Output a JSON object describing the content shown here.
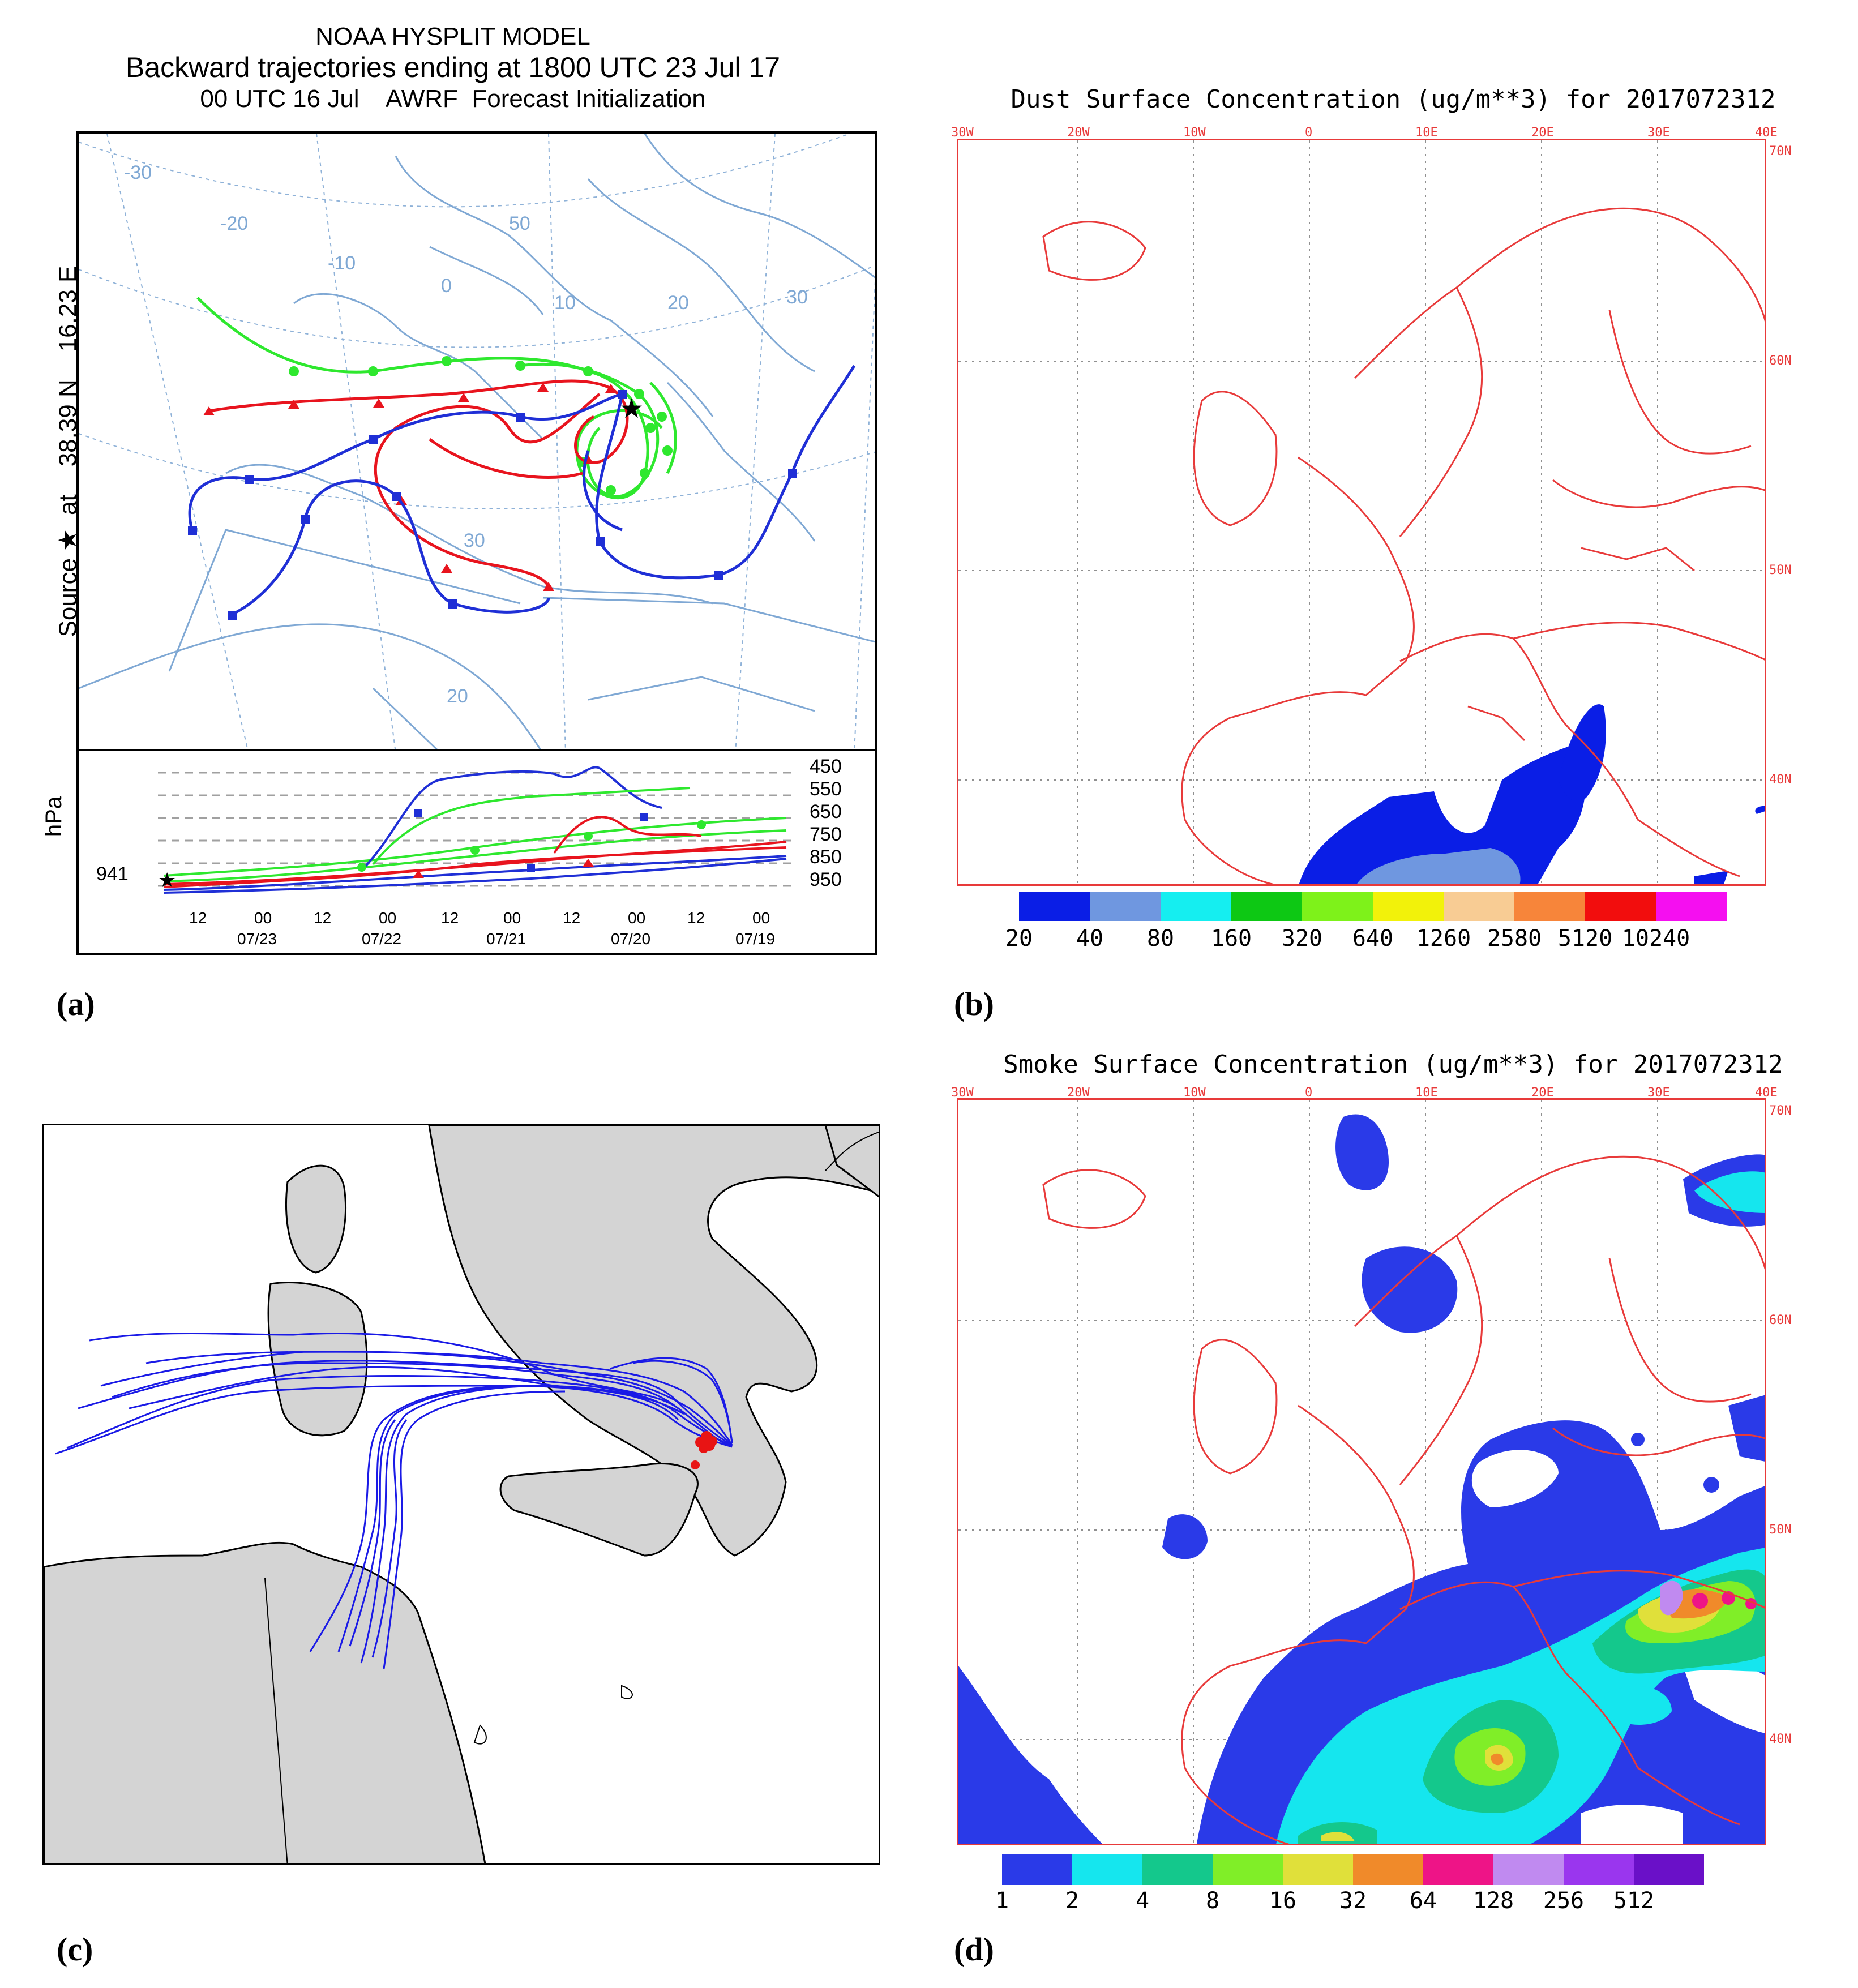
{
  "panel_a": {
    "caption": "(a)",
    "title_line1": "NOAA HYSPLIT MODEL",
    "title_line2": "Backward trajectories ending at 1800 UTC 23 Jul 17",
    "title_line3": "00 UTC 16 Jul    AWRF  Forecast Initialization",
    "source_label": "Source ★  at    38.39 N    16.23 E",
    "map_grid_labels": [
      "-30",
      "-20",
      "-10",
      "0",
      "10",
      "20",
      "30",
      "50",
      "30",
      "20"
    ],
    "hpa_label": "hPa",
    "start_pressure": "941",
    "pressure_levels": [
      "450",
      "550",
      "650",
      "750",
      "850",
      "950"
    ],
    "time_ticks": [
      "12",
      "00",
      "12",
      "00",
      "12",
      "00",
      "12",
      "00",
      "12",
      "00"
    ],
    "date_ticks": [
      "07/23",
      "07/22",
      "07/21",
      "07/20",
      "07/19"
    ],
    "series_colors": [
      "#e8141e",
      "#1f2fd6",
      "#2ee82e"
    ]
  },
  "panel_b": {
    "caption": "(b)",
    "title": "Dust Surface Concentration (ug/m**3) for 2017072312",
    "lon_labels": [
      "30W",
      "20W",
      "10W",
      "0",
      "10E",
      "20E",
      "30E",
      "40E"
    ],
    "lat_labels": [
      "70N",
      "60N",
      "50N",
      "40N"
    ],
    "legend_values": [
      "20",
      "40",
      "80",
      "160",
      "320",
      "640",
      "1260",
      "2580",
      "5120",
      "10240"
    ],
    "legend_colors": [
      "#0a1ee6",
      "#6f97e0",
      "#15eef0",
      "#0dc814",
      "#7ef21a",
      "#f2f20a",
      "#f8cc94",
      "#f7853a",
      "#f20d0d",
      "#f50ff0"
    ]
  },
  "panel_c": {
    "caption": "(c)",
    "line_color": "#1a1ae6",
    "endpoint_color": "#e81414",
    "land_color": "#d4d4d4"
  },
  "panel_d": {
    "caption": "(d)",
    "title": "Smoke Surface Concentration (ug/m**3) for 2017072312",
    "lon_labels": [
      "30W",
      "20W",
      "10W",
      "0",
      "10E",
      "20E",
      "30E",
      "40E"
    ],
    "lat_labels": [
      "70N",
      "60N",
      "50N",
      "40N"
    ],
    "legend_values": [
      "1",
      "2",
      "4",
      "8",
      "16",
      "32",
      "64",
      "128",
      "256",
      "512"
    ],
    "legend_colors": [
      "#2a3ae8",
      "#15e6ee",
      "#14c88c",
      "#80ee28",
      "#e0e03a",
      "#f08a2a",
      "#ee1487",
      "#c08af0",
      "#9a36ee",
      "#6a10c8"
    ]
  }
}
